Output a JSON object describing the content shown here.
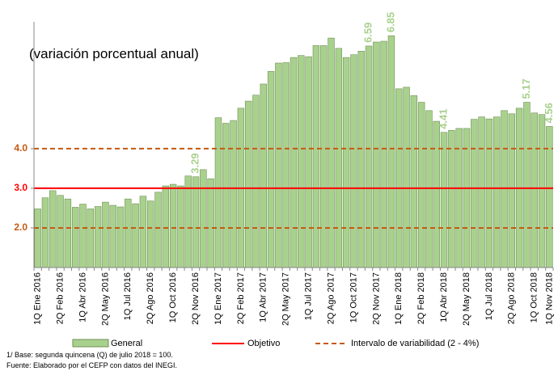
{
  "chart_data": {
    "type": "bar",
    "subtitle": "(variación porcentual anual)",
    "categories": [
      "1Q Ene 2016",
      null,
      null,
      "2Q Feb 2016",
      null,
      null,
      "1Q Abr 2016",
      null,
      null,
      "2Q May 2016",
      null,
      null,
      "1Q Jul 2016",
      null,
      null,
      "2Q Ago 2016",
      null,
      null,
      "1Q Oct 2016",
      null,
      null,
      "2Q Nov 2016",
      null,
      null,
      "1Q Ene 2017",
      null,
      null,
      "2Q Feb 2017",
      null,
      null,
      "1Q Abr 2017",
      null,
      null,
      "2Q May 2017",
      null,
      null,
      "1Q Jul 2017",
      null,
      null,
      "2Q Ago 2017",
      null,
      null,
      "1Q Oct 2017",
      null,
      null,
      "2Q Nov 2017",
      null,
      null,
      "1Q Ene 2018",
      null,
      null,
      "2Q Feb 2018",
      null,
      null,
      "1Q Abr 2018",
      null,
      null,
      "2Q May 2018",
      null,
      null,
      "1Q Jul 2018",
      null,
      null,
      "2Q Ago 2018",
      null,
      null,
      "1Q Oct 2018",
      null,
      "1Q Nov 2018"
    ],
    "series": [
      {
        "name": "General",
        "color": "#a9d18e",
        "values": [
          2.48,
          2.76,
          2.94,
          2.82,
          2.73,
          2.52,
          2.6,
          2.48,
          2.54,
          2.65,
          2.57,
          2.53,
          2.73,
          2.61,
          2.8,
          2.68,
          2.9,
          3.06,
          3.1,
          3.06,
          3.31,
          3.29,
          3.47,
          3.24,
          4.78,
          4.64,
          4.71,
          5.02,
          5.2,
          5.35,
          5.63,
          5.95,
          6.16,
          6.17,
          6.3,
          6.35,
          6.32,
          6.6,
          6.6,
          6.79,
          6.53,
          6.3,
          6.37,
          6.46,
          6.59,
          6.69,
          6.71,
          6.85,
          5.51,
          5.55,
          5.34,
          5.17,
          4.96,
          4.69,
          4.41,
          4.46,
          4.51,
          4.51,
          4.74,
          4.8,
          4.75,
          4.8,
          4.96,
          4.88,
          5.02,
          5.17,
          4.9,
          4.86,
          4.56
        ],
        "value_labels": [
          null,
          null,
          null,
          null,
          null,
          null,
          null,
          null,
          null,
          null,
          null,
          null,
          null,
          null,
          null,
          null,
          null,
          null,
          null,
          null,
          null,
          "3.29",
          null,
          null,
          null,
          null,
          null,
          null,
          null,
          null,
          null,
          null,
          null,
          null,
          null,
          null,
          null,
          null,
          null,
          null,
          null,
          null,
          null,
          null,
          "6.59",
          null,
          null,
          "6.85",
          null,
          null,
          null,
          null,
          null,
          null,
          "4.41",
          null,
          null,
          null,
          null,
          null,
          null,
          null,
          null,
          null,
          null,
          "5.17",
          null,
          null,
          "4.56"
        ]
      }
    ],
    "reference_lines": [
      {
        "name": "Objetivo",
        "color": "#ff0000",
        "style": "solid",
        "values": [
          3
        ]
      },
      {
        "name": "Intervalo de variabilidad (2 - 4%)",
        "color": "#c55a11",
        "style": "dashed",
        "values": [
          2,
          4
        ]
      }
    ],
    "ylim": [
      1,
      7.2
    ],
    "yticks": [
      {
        "value": 2,
        "label": "2.0"
      },
      {
        "value": 3,
        "label": "3.0"
      },
      {
        "value": 4,
        "label": "4.0"
      }
    ],
    "footnotes": [
      "1/ Base: segunda quincena (Q) de julio 2018 = 100.",
      "Fuente: Elaborado por el CEFP con  datos del INEGI."
    ]
  }
}
